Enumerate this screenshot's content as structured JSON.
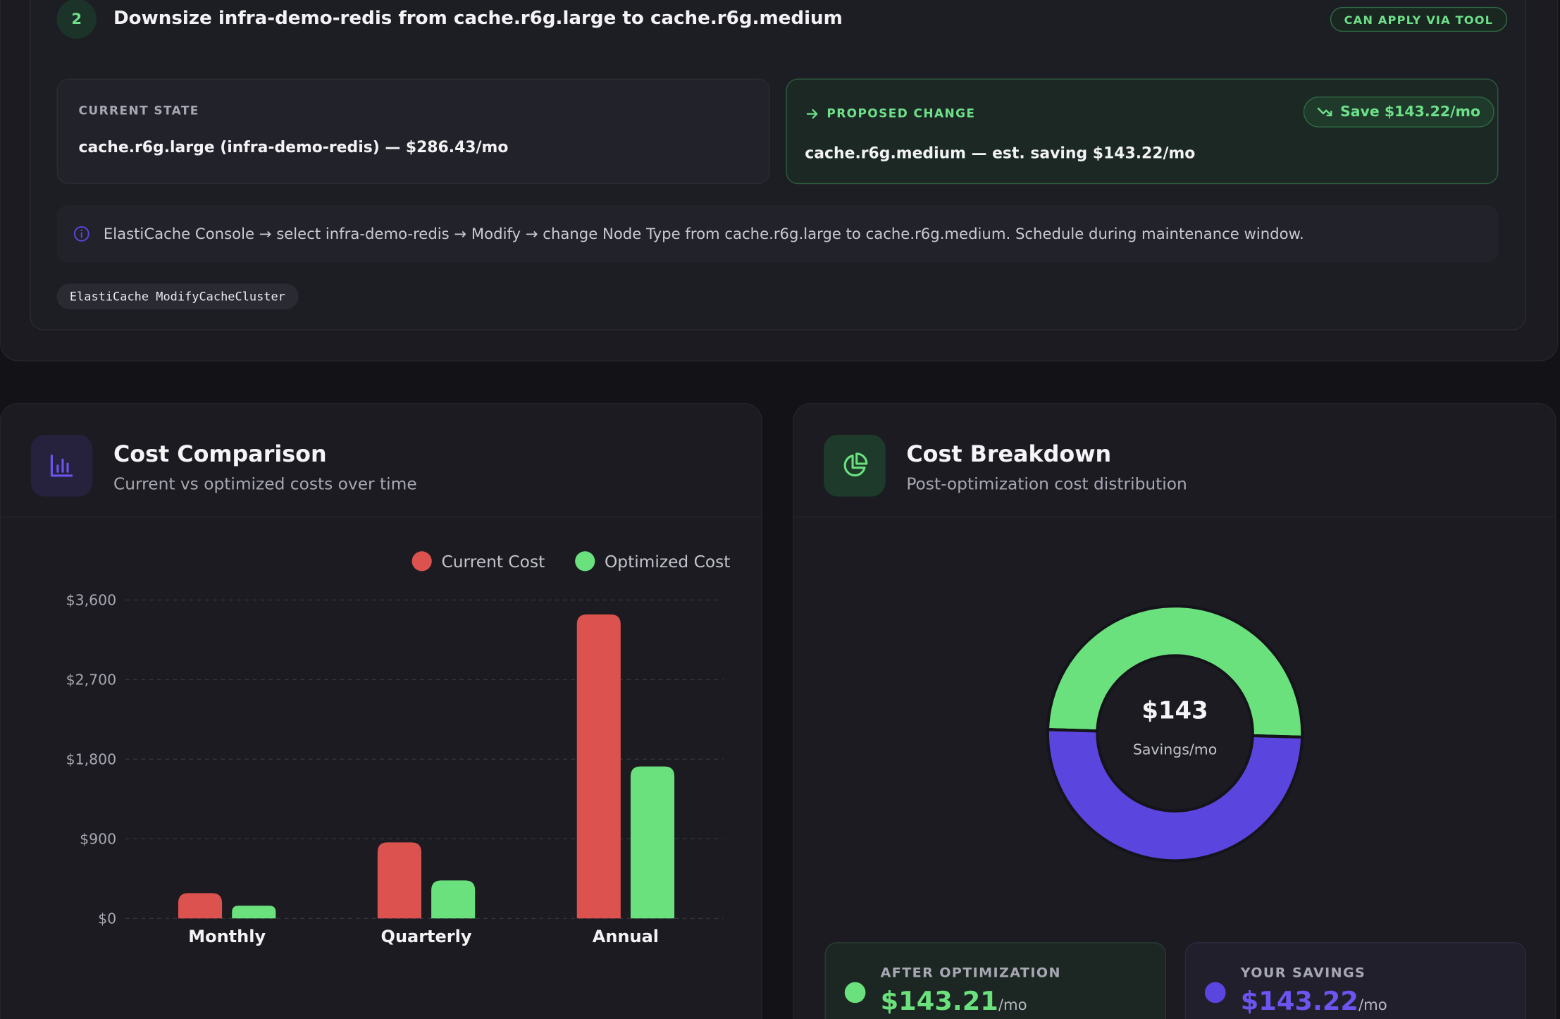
{
  "recommendation": {
    "number": "2",
    "title": "Downsize infra-demo-redis from cache.r6g.large to cache.r6g.medium",
    "apply_badge": "CAN APPLY VIA TOOL",
    "current_state": {
      "label": "CURRENT STATE",
      "value": "cache.r6g.large (infra-demo-redis) — $286.43/mo"
    },
    "proposed_change": {
      "label": "PROPOSED CHANGE",
      "value": "cache.r6g.medium — est. saving $143.22/mo",
      "save_badge": "Save $143.22/mo"
    },
    "instructions": "ElastiCache Console → select infra-demo-redis → Modify → change Node Type from cache.r6g.large to cache.r6g.medium. Schedule during maintenance window.",
    "api_tag": "ElastiCache ModifyCacheCluster"
  },
  "cost_comparison": {
    "title": "Cost Comparison",
    "subtitle": "Current vs optimized costs over time"
  },
  "cost_breakdown": {
    "title": "Cost Breakdown",
    "subtitle": "Post-optimization cost distribution",
    "center_value": "$143",
    "center_label": "Savings/mo",
    "after": {
      "label": "AFTER OPTIMIZATION",
      "value": "$143.21",
      "unit": "/mo"
    },
    "savings": {
      "label": "YOUR SAVINGS",
      "value": "$143.22",
      "unit": "/mo"
    }
  },
  "colors": {
    "current": "#dc524e",
    "optimized": "#6ae17c",
    "savings": "#5b45df"
  },
  "chart_data": [
    {
      "type": "bar",
      "title": "Cost Comparison",
      "categories": [
        "Monthly",
        "Quarterly",
        "Annual"
      ],
      "series": [
        {
          "name": "Current Cost",
          "values": [
            286.43,
            859.29,
            3437.16
          ]
        },
        {
          "name": "Optimized Cost",
          "values": [
            143.21,
            429.63,
            1718.52
          ]
        }
      ],
      "yticks": [
        "$0",
        "$900",
        "$1,800",
        "$2,700",
        "$3,600"
      ],
      "ytick_values": [
        0,
        900,
        1800,
        2700,
        3600
      ],
      "ylim": [
        0,
        3600
      ],
      "grid": true,
      "legend": "top-right"
    },
    {
      "type": "pie",
      "title": "Cost Breakdown",
      "labels": [
        "After Optimization",
        "Your Savings"
      ],
      "values": [
        143.21,
        143.22
      ]
    }
  ]
}
